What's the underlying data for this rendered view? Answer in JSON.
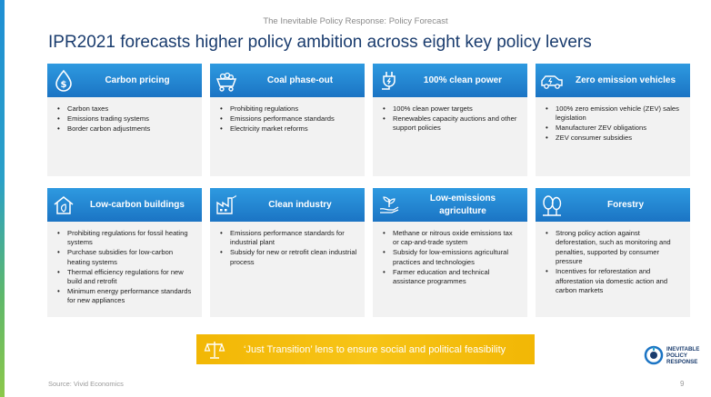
{
  "header": {
    "slide_header": "The Inevitable Policy Response: Policy Forecast",
    "title": "IPR2021 forecasts higher policy ambition across eight key policy levers"
  },
  "colors": {
    "accent_blue": "#1b74c4",
    "title_navy": "#1a3c6e",
    "banner_gold": "#f2b705"
  },
  "cards": [
    {
      "title": "Carbon pricing",
      "icon": "money-drop-icon",
      "items": [
        "Carbon taxes",
        "Emissions trading systems",
        "Border carbon adjustments"
      ]
    },
    {
      "title": "Coal phase-out",
      "icon": "coal-cart-icon",
      "items": [
        "Prohibiting regulations",
        "Emissions performance standards",
        "Electricity market reforms"
      ]
    },
    {
      "title": "100% clean power",
      "icon": "power-plug-icon",
      "items": [
        "100% clean power targets",
        "Renewables capacity auctions and other support policies"
      ]
    },
    {
      "title": "Zero emission vehicles",
      "icon": "electric-car-icon",
      "items": [
        "100% zero emission vehicle (ZEV) sales legislation",
        "Manufacturer ZEV obligations",
        "ZEV consumer subsidies"
      ]
    },
    {
      "title": "Low-carbon buildings",
      "icon": "eco-house-icon",
      "items": [
        "Prohibiting regulations for fossil heating systems",
        "Purchase subsidies for low-carbon heating systems",
        "Thermal efficiency regulations for new build and retrofit",
        "Minimum energy performance standards for new appliances"
      ]
    },
    {
      "title": "Clean industry",
      "icon": "factory-icon",
      "items": [
        "Emissions performance standards for industrial plant",
        "Subsidy for new or retrofit clean industrial process"
      ]
    },
    {
      "title": "Low-emissions agriculture",
      "icon": "plant-in-hand-icon",
      "items": [
        "Methane or nitrous oxide emissions tax or cap-and-trade system",
        "Subsidy for low-emissions agricultural practices and technologies",
        "Farmer education and technical assistance programmes"
      ]
    },
    {
      "title": "Forestry",
      "icon": "trees-icon",
      "items": [
        "Strong policy action against deforestation, such as monitoring and penalties, supported by consumer pressure",
        "Incentives for reforestation and afforestation via domestic action and carbon markets"
      ]
    }
  ],
  "banner": {
    "text": "‘Just Transition’ lens to ensure social and political feasibility",
    "icon": "scales-icon"
  },
  "logo": {
    "line1": "INEVITABLE",
    "line2": "POLICY",
    "line3": "RESPONSE"
  },
  "footer": {
    "source": "Source: Vivid Economics",
    "page_number": "9"
  }
}
